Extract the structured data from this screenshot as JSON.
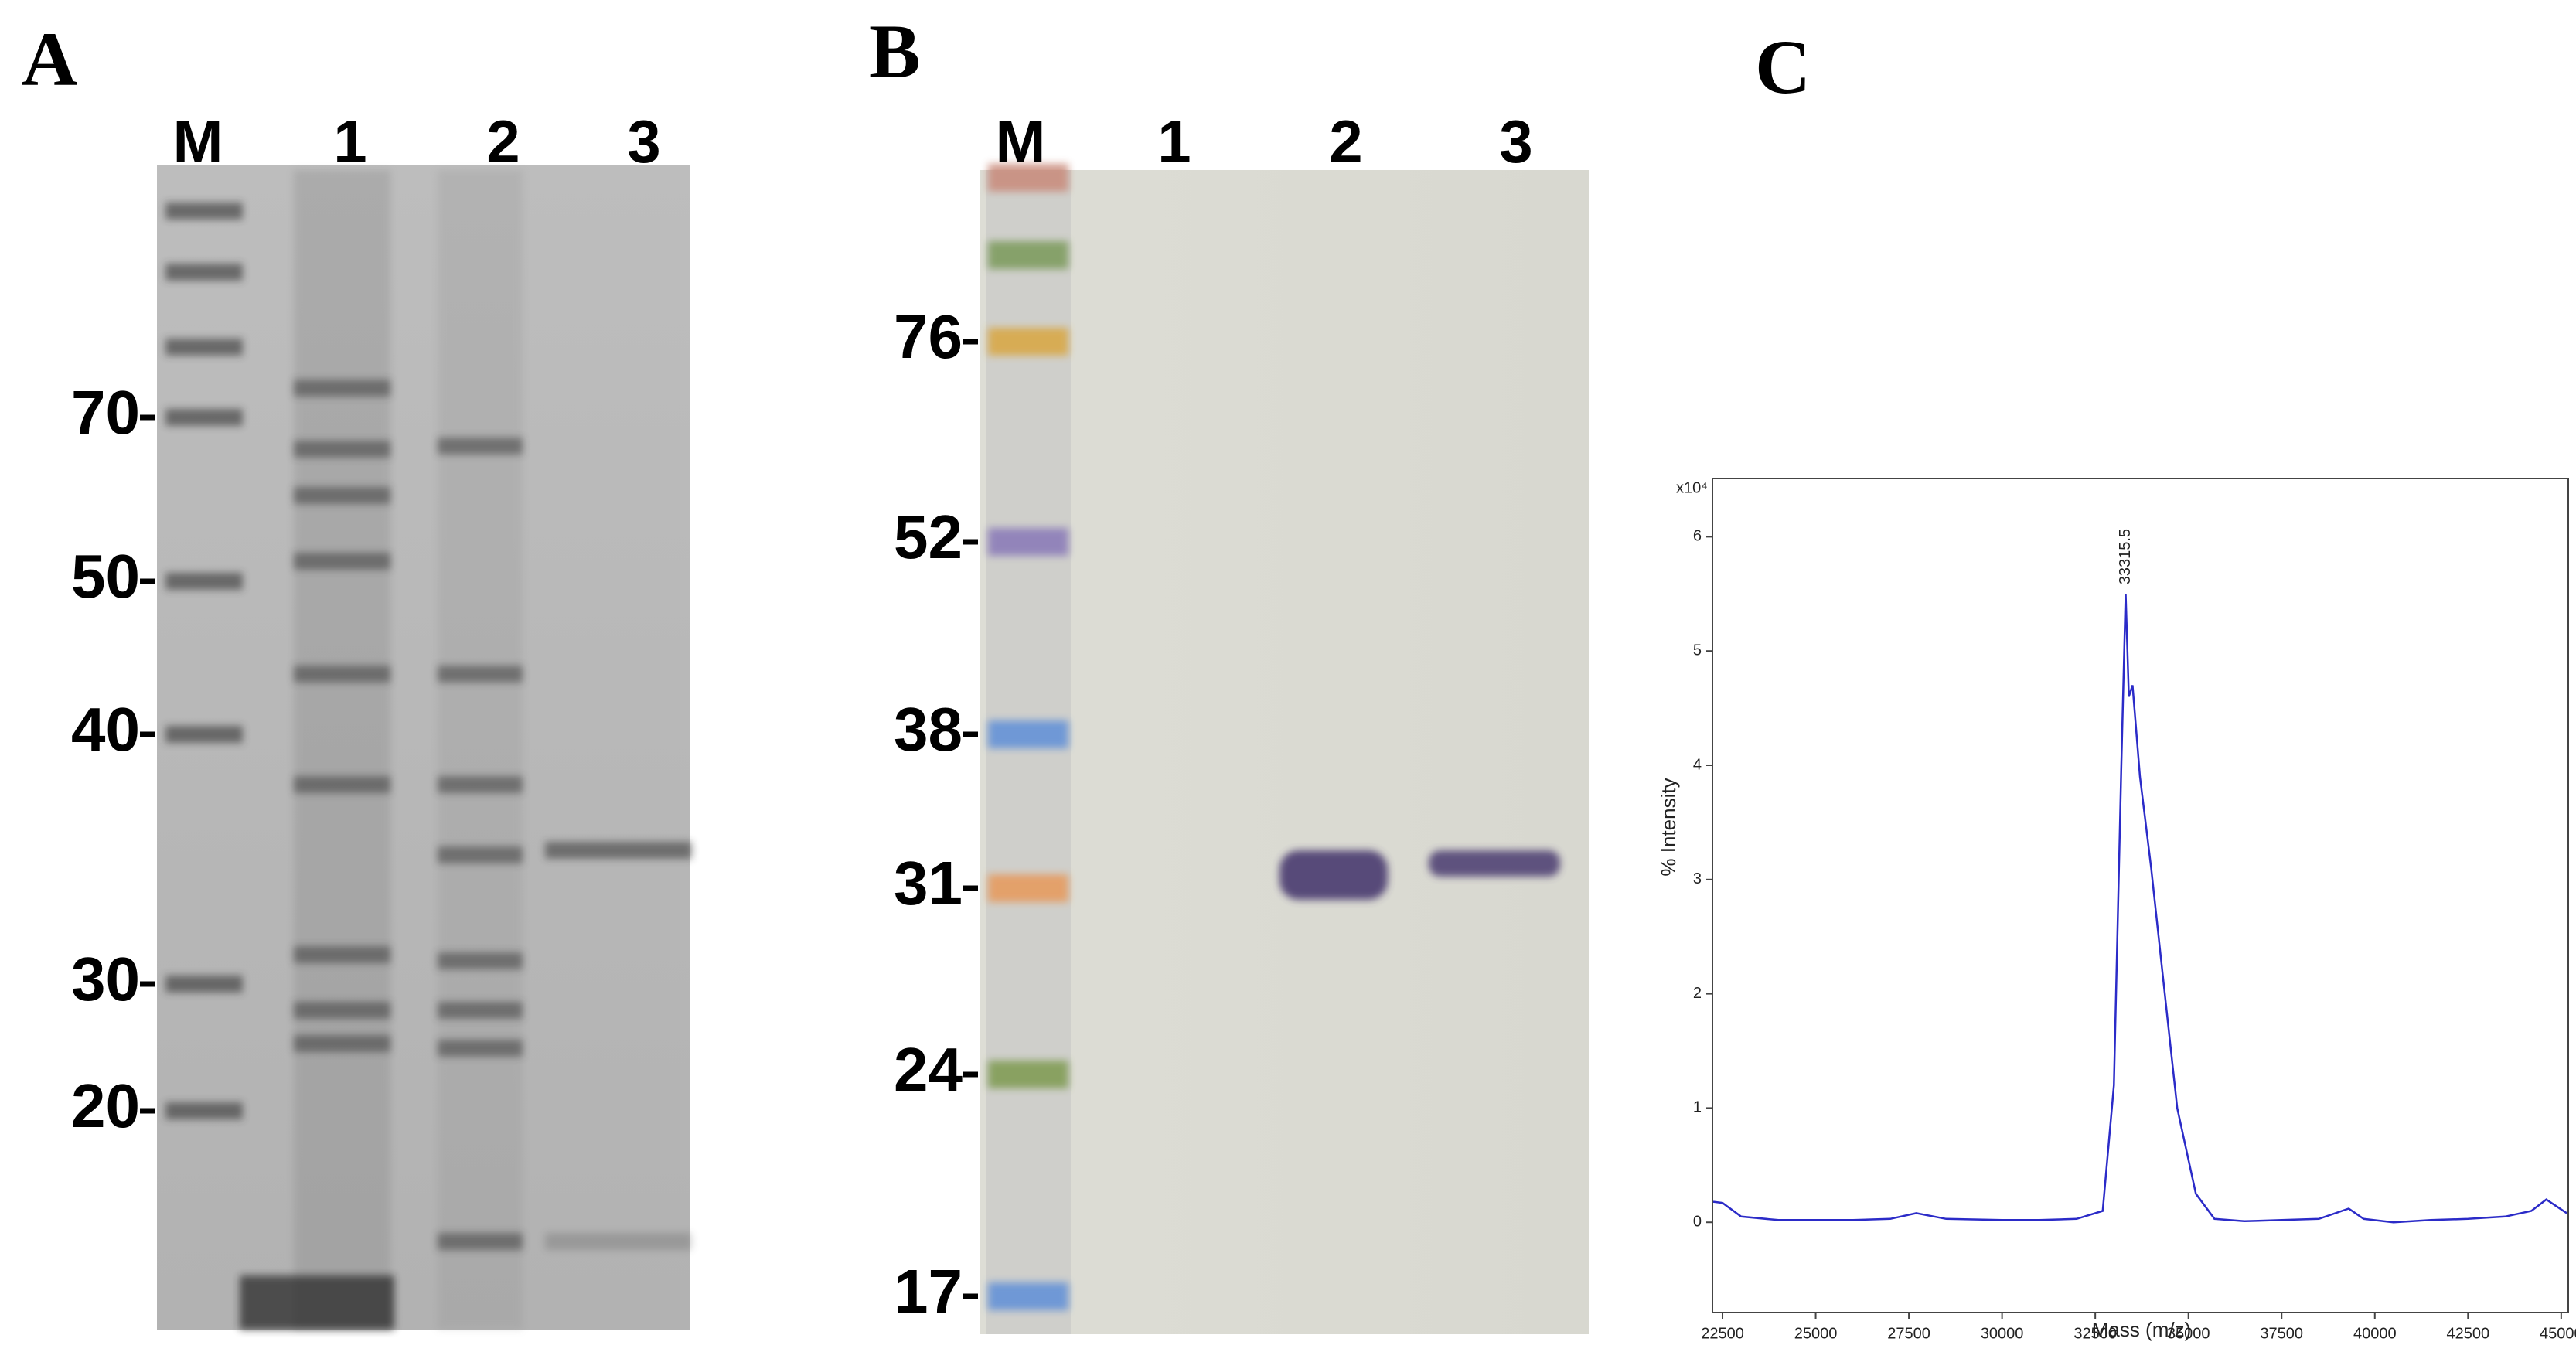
{
  "panels": [
    {
      "label": "A",
      "lanes": [
        "M",
        "1",
        "2",
        "3"
      ],
      "markers": [
        70,
        50,
        40,
        30,
        20
      ]
    },
    {
      "label": "B",
      "lanes": [
        "M",
        "1",
        "2",
        "3"
      ],
      "markers": [
        76,
        52,
        38,
        31,
        24,
        17
      ]
    }
  ],
  "chart_data": {
    "type": "line",
    "panel_label": "C",
    "x_label": "Mass (m/z)",
    "y_label": "% Intensity",
    "y_multiplier": "x10⁴",
    "peak_label": "33315.5",
    "color": "#2b2bc8",
    "xlim": [
      22230,
      45190
    ],
    "xticks": [
      22500,
      25000,
      27500,
      30000,
      32500,
      35000,
      37500,
      40000,
      42500,
      45000
    ],
    "ylim": [
      -0.79,
      6.51
    ],
    "yticks": [
      0,
      1,
      2,
      3,
      4,
      5,
      6
    ],
    "x": [
      22250,
      22500,
      23000,
      24000,
      25000,
      26000,
      27000,
      27700,
      28500,
      30000,
      31000,
      32000,
      32700,
      33000,
      33200,
      33315.5,
      33400,
      33500,
      33700,
      34000,
      34300,
      34700,
      35200,
      35700,
      36500,
      37500,
      38500,
      39300,
      39700,
      40500,
      41500,
      42500,
      43500,
      44200,
      44600,
      45150
    ],
    "values": [
      0.18,
      0.17,
      0.05,
      0.02,
      0.02,
      0.02,
      0.03,
      0.08,
      0.03,
      0.02,
      0.02,
      0.03,
      0.1,
      1.2,
      4.0,
      5.5,
      4.6,
      4.7,
      3.9,
      3.1,
      2.2,
      1.0,
      0.25,
      0.03,
      0.01,
      0.02,
      0.03,
      0.12,
      0.03,
      0.0,
      0.02,
      0.03,
      0.05,
      0.1,
      0.2,
      0.08
    ]
  }
}
